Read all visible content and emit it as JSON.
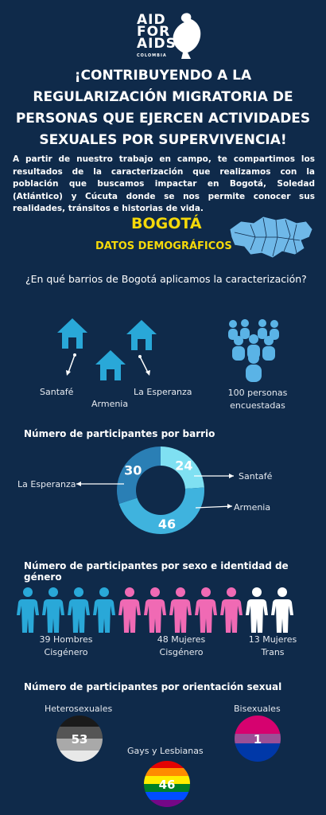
{
  "logo": {
    "line1": "AID",
    "line2": "FOR",
    "line3": "AIDS",
    "sub": "COLOMBIA"
  },
  "headline": "¡CONTRIBUYENDO A LA REGULARIZACIÓN MIGRATORIA DE PERSONAS QUE EJERCEN ACTIVIDADES SEXUALES POR SUPERVIVENCIA!",
  "intro": "A partir de nuestro trabajo en campo, te compartimos los resultados de la caracterización que realizamos con la población que buscamos impactar en Bogotá, Soledad (Atlántico) y Cúcuta donde se nos permite conocer sus realidades, tránsitos e historias de vida.",
  "city": "BOGOTÁ",
  "subtitle": "DATOS DEMOGRÁFICOS",
  "question": "¿En qué barrios de Bogotá aplicamos la caracterización?",
  "neighborhoods": {
    "santafe": "Santafé",
    "armenia": "Armenia",
    "esperanza": "La Esperanza",
    "surveyed_line1": "100 personas",
    "surveyed_line2": "encuestadas"
  },
  "colors": {
    "background": "#0f2a4a",
    "accent_yellow": "#f5d90a",
    "light_blue": "#29a8d8",
    "pink": "#f06ab4",
    "white": "#ffffff"
  },
  "chart_data": [
    {
      "type": "pie",
      "title": "Número de participantes por barrio",
      "categories": [
        "Santafé",
        "Armenia",
        "La Esperanza"
      ],
      "values": [
        24,
        46,
        30
      ],
      "colors": [
        "#7fe0f2",
        "#3fb3de",
        "#2a7fb5"
      ]
    },
    {
      "type": "bar",
      "title": "Número de participantes por sexo e identidad de género",
      "categories": [
        "39 Hombres Cisgénero",
        "48 Mujeres Cisgénero",
        "13 Mujeres Trans"
      ],
      "category_lines": [
        [
          "39 Hombres",
          "Cisgénero"
        ],
        [
          "48 Mujeres",
          "Cisgénero"
        ],
        [
          "13 Mujeres",
          "Trans"
        ]
      ],
      "values": [
        39,
        48,
        13
      ],
      "icon_counts": [
        4,
        5,
        2
      ],
      "colors": [
        "#29a8d8",
        "#f06ab4",
        "#ffffff"
      ]
    },
    {
      "type": "bar",
      "title": "Número de participantes por orientación sexual",
      "categories": [
        "Heterosexuales",
        "Gays y Lesbianas",
        "Bisexuales"
      ],
      "values": [
        53,
        46,
        1
      ]
    }
  ]
}
